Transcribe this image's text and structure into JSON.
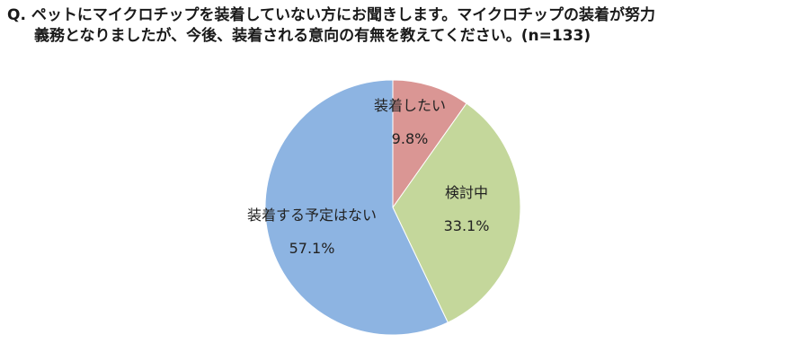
{
  "question": {
    "prefix": "Q.",
    "line1": "ペットにマイクロチップを装着していない方にお聞きします。マイクロチップの装着が努力",
    "line2": "義務となりましたが、今後、装着される意向の有無を教えてください。(n=133)"
  },
  "chart_data": {
    "type": "pie",
    "title": "",
    "n": 133,
    "start_angle_deg": 0,
    "direction": "clockwise",
    "slices": [
      {
        "label": "装着したい",
        "value": 9.8,
        "value_label": "9.8%",
        "color": "#da9694"
      },
      {
        "label": "検討中",
        "value": 33.1,
        "value_label": "33.1%",
        "color": "#c4d79b"
      },
      {
        "label": "装着する予定はない",
        "value": 57.1,
        "value_label": "57.1%",
        "color": "#8db4e2"
      }
    ]
  }
}
